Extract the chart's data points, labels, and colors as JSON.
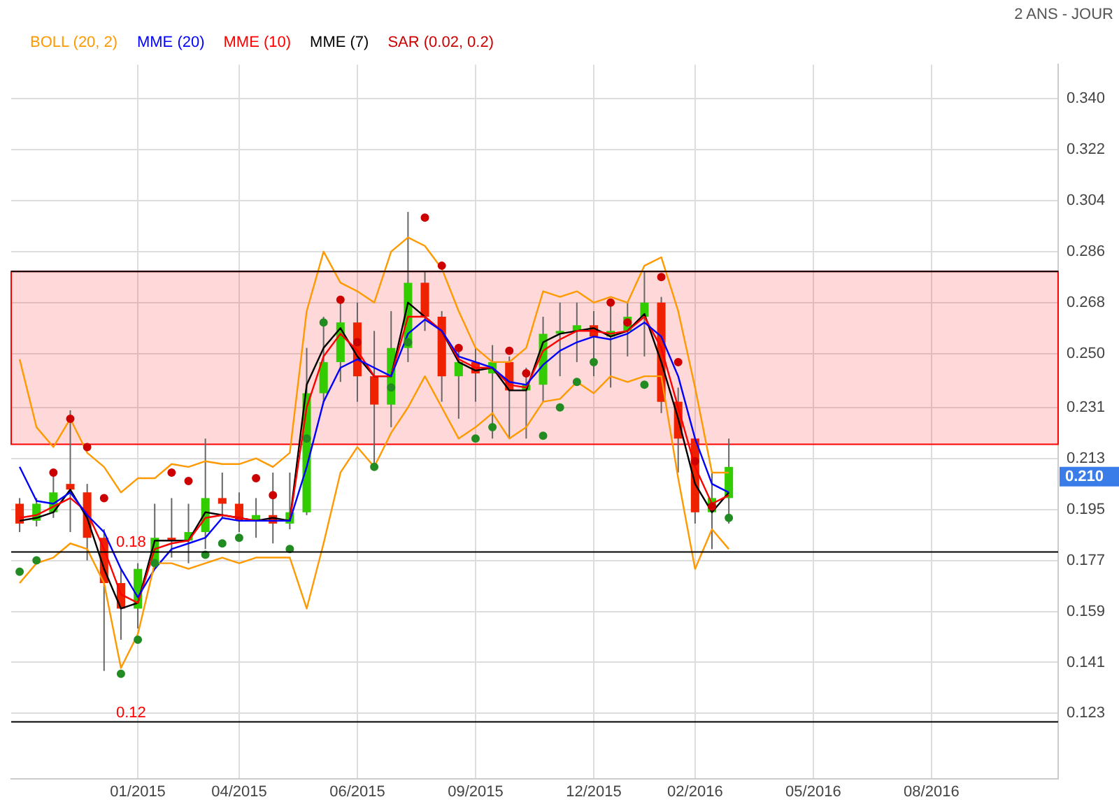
{
  "chart_data": {
    "type": "candlestick",
    "subtitle": "2 ANS - JOUR",
    "categories": [
      null,
      null,
      null,
      null,
      null,
      null,
      null,
      "01/2015",
      null,
      null,
      null,
      null,
      null,
      "04/2015",
      null,
      null,
      null,
      null,
      null,
      null,
      "06/2015",
      null,
      null,
      null,
      null,
      null,
      null,
      "09/2015",
      null,
      null,
      null,
      null,
      null,
      null,
      "12/2015",
      null,
      null,
      null,
      null,
      null,
      "02/2016",
      null,
      null,
      null,
      null,
      null,
      null,
      "05/2016",
      null,
      null,
      null,
      null,
      null,
      null,
      "08/2016",
      null,
      null,
      null,
      null,
      null,
      null,
      null
    ],
    "ohlc": [
      [
        0.197,
        0.199,
        0.187,
        0.19
      ],
      [
        0.191,
        0.199,
        0.189,
        0.197
      ],
      [
        0.194,
        0.208,
        0.192,
        0.201
      ],
      [
        0.204,
        0.23,
        0.187,
        0.202
      ],
      [
        0.201,
        0.204,
        0.177,
        0.185
      ],
      [
        0.185,
        0.188,
        0.138,
        0.169
      ],
      [
        0.169,
        0.174,
        0.149,
        0.16
      ],
      [
        0.16,
        0.176,
        0.153,
        0.174
      ],
      [
        0.176,
        0.197,
        0.175,
        0.185
      ],
      [
        0.185,
        0.199,
        0.178,
        0.184
      ],
      [
        0.184,
        0.197,
        0.176,
        0.187
      ],
      [
        0.187,
        0.22,
        0.181,
        0.199
      ],
      [
        0.199,
        0.208,
        0.192,
        0.197
      ],
      [
        0.197,
        0.201,
        0.187,
        0.191
      ],
      [
        0.191,
        0.199,
        0.185,
        0.193
      ],
      [
        0.193,
        0.208,
        0.183,
        0.19
      ],
      [
        0.19,
        0.208,
        0.188,
        0.194
      ],
      [
        0.194,
        0.252,
        0.193,
        0.236
      ],
      [
        0.236,
        0.263,
        0.233,
        0.247
      ],
      [
        0.247,
        0.268,
        0.24,
        0.261
      ],
      [
        0.261,
        0.268,
        0.233,
        0.242
      ],
      [
        0.242,
        0.258,
        0.21,
        0.232
      ],
      [
        0.232,
        0.265,
        0.224,
        0.252
      ],
      [
        0.252,
        0.3,
        0.247,
        0.275
      ],
      [
        0.275,
        0.279,
        0.258,
        0.263
      ],
      [
        0.263,
        0.265,
        0.233,
        0.242
      ],
      [
        0.242,
        0.252,
        0.227,
        0.247
      ],
      [
        0.247,
        0.252,
        0.233,
        0.243
      ],
      [
        0.243,
        0.253,
        0.22,
        0.247
      ],
      [
        0.247,
        0.249,
        0.22,
        0.237
      ],
      [
        0.237,
        0.245,
        0.22,
        0.239
      ],
      [
        0.239,
        0.263,
        0.233,
        0.257
      ],
      [
        0.257,
        0.268,
        0.242,
        0.258
      ],
      [
        0.258,
        0.268,
        0.247,
        0.26
      ],
      [
        0.26,
        0.265,
        0.242,
        0.256
      ],
      [
        0.256,
        0.268,
        0.238,
        0.258
      ],
      [
        0.258,
        0.268,
        0.249,
        0.263
      ],
      [
        0.263,
        0.279,
        0.249,
        0.268
      ],
      [
        0.268,
        0.27,
        0.229,
        0.233
      ],
      [
        0.233,
        0.238,
        0.208,
        0.22
      ],
      [
        0.22,
        0.22,
        0.19,
        0.194
      ],
      [
        0.194,
        0.208,
        0.181,
        0.199
      ],
      [
        0.199,
        0.22,
        0.19,
        0.21
      ],
      null,
      null,
      null,
      null,
      null,
      null,
      null,
      null,
      null,
      null,
      null,
      null,
      null,
      null,
      null,
      null,
      null,
      null,
      null
    ],
    "series": [
      {
        "name": "BOLL (20, 2)",
        "type": "line",
        "color": "#ff9900",
        "values": [
          0.248,
          0.224,
          0.217,
          0.227,
          0.215,
          0.21,
          0.201,
          0.206,
          0.206,
          0.211,
          0.21,
          0.212,
          0.211,
          0.211,
          0.213,
          0.21,
          0.215,
          0.265,
          0.286,
          0.275,
          0.272,
          0.268,
          0.286,
          0.291,
          0.288,
          0.28,
          0.265,
          0.252,
          0.247,
          0.247,
          0.252,
          0.272,
          0.27,
          0.272,
          0.268,
          0.27,
          0.268,
          0.281,
          0.284,
          0.265,
          0.238,
          0.208,
          0.208,
          null,
          null,
          null,
          null,
          null,
          null,
          null,
          null,
          null,
          null,
          null,
          null,
          null,
          null,
          null,
          null,
          null,
          null,
          null
        ]
      },
      {
        "type": "line",
        "color": "#ff9900",
        "values": [
          0.169,
          0.176,
          0.178,
          0.183,
          0.181,
          0.169,
          0.139,
          0.151,
          0.176,
          0.176,
          0.174,
          0.176,
          0.178,
          0.176,
          0.178,
          0.178,
          0.178,
          0.16,
          0.183,
          0.208,
          0.217,
          0.21,
          0.222,
          0.231,
          0.242,
          0.231,
          0.22,
          0.224,
          0.229,
          0.22,
          0.224,
          0.233,
          0.234,
          0.24,
          0.236,
          0.242,
          0.24,
          0.242,
          0.242,
          0.206,
          0.174,
          0.188,
          0.181,
          null,
          null,
          null,
          null,
          null,
          null,
          null,
          null,
          null,
          null,
          null,
          null,
          null,
          null,
          null,
          null,
          null,
          null,
          null
        ]
      },
      {
        "name": "MME (20)",
        "type": "line",
        "color": "#0000ff",
        "values": [
          0.21,
          0.198,
          0.197,
          0.201,
          0.193,
          0.187,
          0.174,
          0.164,
          0.174,
          0.181,
          0.183,
          0.185,
          0.192,
          0.191,
          0.191,
          0.191,
          0.191,
          0.21,
          0.233,
          0.245,
          0.248,
          0.245,
          0.242,
          0.257,
          0.262,
          0.258,
          0.249,
          0.247,
          0.245,
          0.24,
          0.239,
          0.246,
          0.251,
          0.254,
          0.256,
          0.255,
          0.257,
          0.261,
          0.256,
          0.242,
          0.22,
          0.204,
          0.201,
          null,
          null,
          null,
          null,
          null,
          null,
          null,
          null,
          null,
          null,
          null,
          null,
          null,
          null,
          null,
          null,
          null,
          null,
          null
        ]
      },
      {
        "name": "MME (10)",
        "type": "line",
        "color": "#ff0000",
        "values": [
          0.192,
          0.193,
          0.196,
          0.199,
          0.194,
          0.181,
          0.165,
          0.162,
          0.181,
          0.183,
          0.184,
          0.192,
          0.193,
          0.192,
          0.191,
          0.191,
          0.191,
          0.231,
          0.249,
          0.257,
          0.251,
          0.242,
          0.242,
          0.263,
          0.263,
          0.258,
          0.248,
          0.245,
          0.245,
          0.239,
          0.238,
          0.251,
          0.255,
          0.258,
          0.258,
          0.257,
          0.258,
          0.263,
          0.252,
          0.231,
          0.21,
          0.197,
          0.2,
          null,
          null,
          null,
          null,
          null,
          null,
          null,
          null,
          null,
          null,
          null,
          null,
          null,
          null,
          null,
          null,
          null,
          null,
          null
        ]
      },
      {
        "name": "MME (7)",
        "type": "line",
        "color": "#000000",
        "values": [
          0.191,
          0.192,
          0.194,
          0.202,
          0.192,
          0.174,
          0.16,
          0.162,
          0.184,
          0.184,
          0.184,
          0.194,
          0.193,
          0.192,
          0.191,
          0.192,
          0.191,
          0.239,
          0.252,
          0.259,
          0.249,
          0.242,
          0.242,
          0.268,
          0.263,
          0.258,
          0.247,
          0.244,
          0.245,
          0.237,
          0.237,
          0.254,
          0.257,
          0.258,
          0.259,
          0.256,
          0.258,
          0.264,
          0.247,
          0.227,
          0.204,
          0.194,
          0.201,
          null,
          null,
          null,
          null,
          null,
          null,
          null,
          null,
          null,
          null,
          null,
          null,
          null,
          null,
          null,
          null,
          null,
          null,
          null
        ]
      },
      {
        "name": "SAR (0.02, 0.2)",
        "type": "scatter",
        "color": "#cc0000",
        "values": [
          0.173,
          0.177,
          0.208,
          0.227,
          0.217,
          0.199,
          0.137,
          0.149,
          0.176,
          0.208,
          0.205,
          0.179,
          0.183,
          0.185,
          0.206,
          0.2,
          0.181,
          0.22,
          0.261,
          0.269,
          0.254,
          0.21,
          0.238,
          0.254,
          0.298,
          0.281,
          0.252,
          0.22,
          0.224,
          0.251,
          0.243,
          0.221,
          0.231,
          0.24,
          0.247,
          0.268,
          0.261,
          0.239,
          0.277,
          0.247,
          0.212,
          0.196,
          0.192,
          null,
          null,
          null,
          null,
          null,
          null,
          null,
          null,
          null,
          null,
          null,
          null,
          null,
          null,
          null,
          null,
          null,
          null,
          null
        ],
        "colors": [
          "#228b22",
          "#228b22",
          "#cc0000",
          "#cc0000",
          "#cc0000",
          "#cc0000",
          "#228b22",
          "#228b22",
          "#228b22",
          "#cc0000",
          "#cc0000",
          "#228b22",
          "#228b22",
          "#228b22",
          "#cc0000",
          "#cc0000",
          "#228b22",
          "#228b22",
          "#228b22",
          "#cc0000",
          "#cc0000",
          "#228b22",
          "#228b22",
          "#228b22",
          "#cc0000",
          "#cc0000",
          "#cc0000",
          "#228b22",
          "#228b22",
          "#cc0000",
          "#cc0000",
          "#228b22",
          "#228b22",
          "#228b22",
          "#228b22",
          "#cc0000",
          "#cc0000",
          "#228b22",
          "#cc0000",
          "#cc0000",
          "#cc0000",
          "#cc0000",
          "#228b22",
          null,
          null,
          null,
          null,
          null,
          null,
          null,
          null,
          null,
          null,
          null,
          null,
          null,
          null,
          null,
          null,
          null,
          null,
          null
        ]
      }
    ],
    "ylim": [
      0.1,
      0.352
    ],
    "yticks": [
      {
        "value": 0.123,
        "label": "0.123"
      },
      {
        "value": 0.141,
        "label": "0.141"
      },
      {
        "value": 0.159,
        "label": "0.159"
      },
      {
        "value": 0.177,
        "label": "0.177"
      },
      {
        "value": 0.195,
        "label": "0.195"
      },
      {
        "value": 0.213,
        "label": "0.213"
      },
      {
        "value": 0.231,
        "label": "0.231"
      },
      {
        "value": 0.25,
        "label": "0.250"
      },
      {
        "value": 0.268,
        "label": "0.268"
      },
      {
        "value": 0.286,
        "label": "0.286"
      },
      {
        "value": 0.304,
        "label": "0.304"
      },
      {
        "value": 0.322,
        "label": "0.322"
      },
      {
        "value": 0.34,
        "label": "0.340"
      }
    ],
    "ref_lines": [
      {
        "axis": "y",
        "value": 0.279,
        "color": "#000000"
      },
      {
        "axis": "y",
        "value": 0.18,
        "label": "0.18",
        "color": "#000000"
      },
      {
        "axis": "y",
        "value": 0.12,
        "label": "0.12",
        "color": "#000000"
      }
    ],
    "bands": [
      {
        "axis": "y",
        "from": 0.218,
        "to": 0.279,
        "color": "#ff0000"
      }
    ],
    "annotations": [
      "0.210"
    ],
    "grid": true,
    "legend": "top left"
  }
}
